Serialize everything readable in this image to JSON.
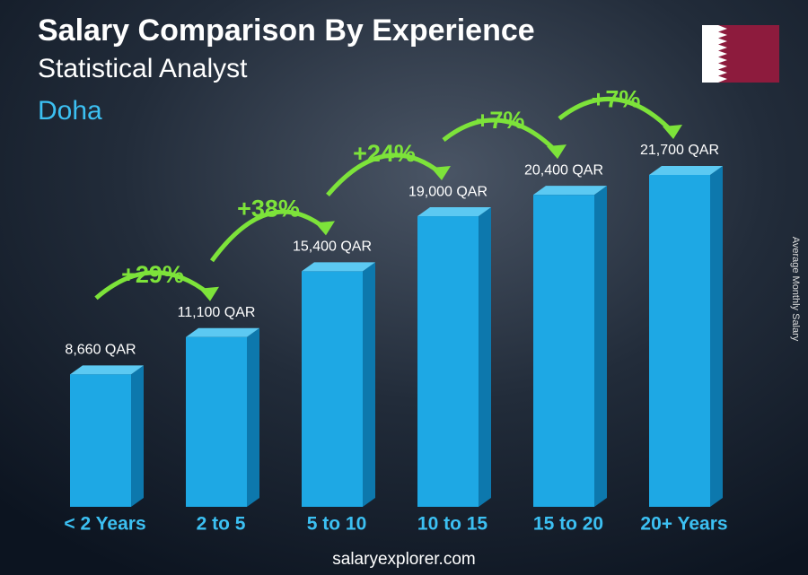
{
  "chart_data": {
    "type": "bar3d",
    "title": "Salary Comparison By Experience",
    "subtitle": "Statistical Analyst",
    "location": "Doha",
    "y_label": "Average Monthly Salary",
    "categories": [
      "< 2 Years",
      "2 to 5",
      "5 to 10",
      "10 to 15",
      "15 to 20",
      "20+ Years"
    ],
    "values": [
      8660,
      11100,
      15400,
      19000,
      20400,
      21700
    ],
    "value_labels": [
      "8,660 QAR",
      "11,100 QAR",
      "15,400 QAR",
      "19,000 QAR",
      "20,400 QAR",
      "21,700 QAR"
    ],
    "color": "#1ea8e4",
    "changes": {
      "values": [
        29,
        38,
        24,
        7,
        7
      ],
      "value_labels": [
        "+29%",
        "+38%",
        "+24%",
        "+7%",
        "+7%"
      ],
      "color": "#7de33a"
    },
    "footer": "salaryexplorer.com"
  }
}
